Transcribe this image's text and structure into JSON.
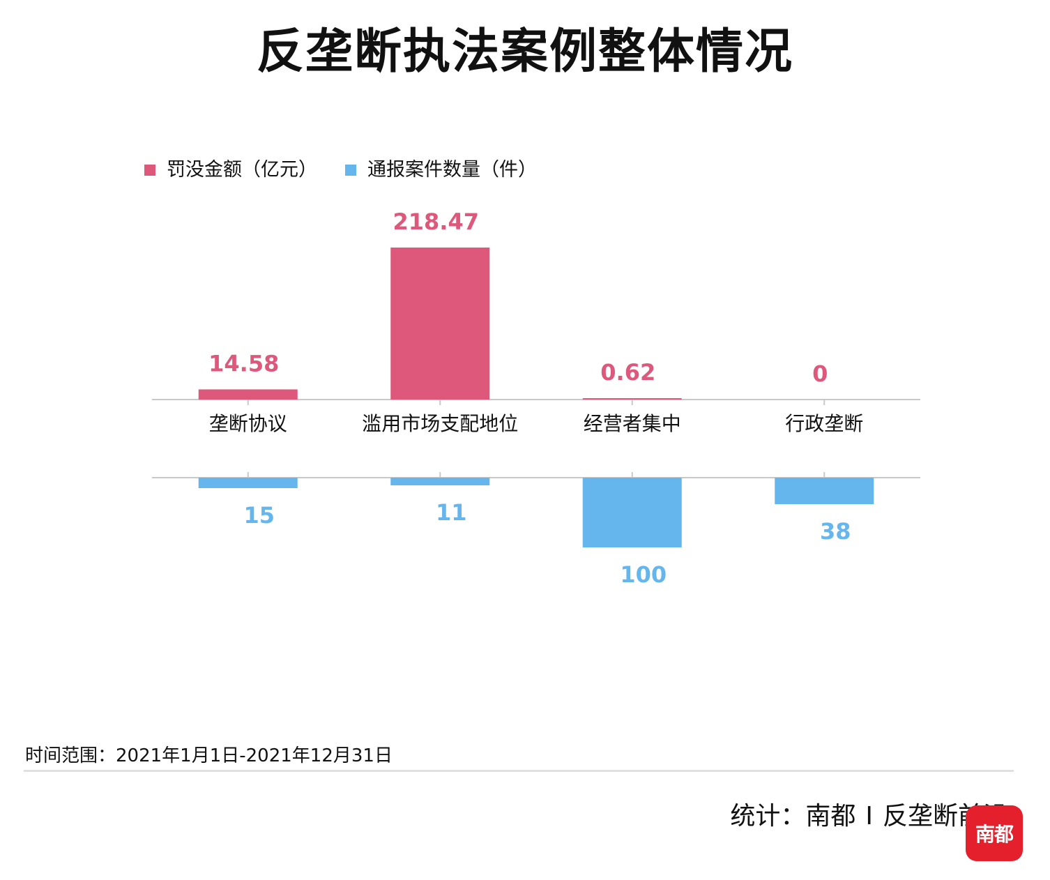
{
  "title": "反垄断执法案例整体情况",
  "legend": [
    {
      "label": "罚没金额（亿元）",
      "color": "#dd587b"
    },
    {
      "label": "通报案件数量（件）",
      "color": "#66b6ee"
    }
  ],
  "chart_data": {
    "type": "bar",
    "categories": [
      "垄断协议",
      "滥用市场支配地位",
      "经营者集中",
      "行政垄断"
    ],
    "series": [
      {
        "name": "罚没金额（亿元）",
        "values": [
          14.58,
          218.47,
          0.62,
          0
        ],
        "labels": [
          "14.58",
          "218.47",
          "0.62",
          "0"
        ],
        "color": "#dd587b",
        "direction": "up"
      },
      {
        "name": "通报案件数量（件）",
        "values": [
          15,
          11,
          100,
          38
        ],
        "labels": [
          "15",
          "11",
          "100",
          "38"
        ],
        "color": "#66b6ee",
        "direction": "down"
      }
    ],
    "legend_position": "top-left",
    "grid": false
  },
  "footer": {
    "time_range": "时间范围：2021年1月1日-2021年12月31日",
    "credit_prefix": "统计：南都",
    "credit_sep": "I",
    "credit_suffix": "反垄断前沿",
    "logo_text": "南都"
  }
}
